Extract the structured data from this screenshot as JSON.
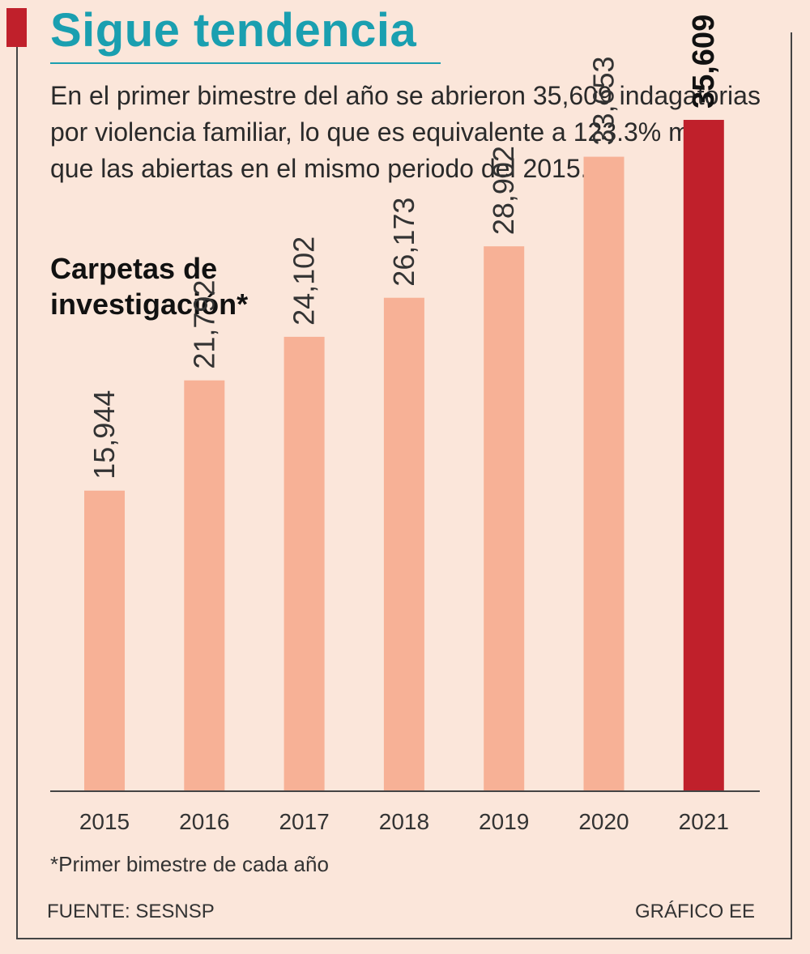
{
  "header": {
    "title": "Sigue tendencia",
    "intro": "En el primer bimestre del año se abrieron 35,609 indagatorias por violencia familiar, lo que es equivalente a 123.3% más que las abiertas en el mismo periodo del 2015."
  },
  "colors": {
    "title": "#1a9fb0",
    "accent": "#c0202b",
    "bar": "#f7b196",
    "bar_highlight": "#c0202b",
    "background": "#fbe6da"
  },
  "chart_data": {
    "type": "bar",
    "title": "Carpetas de investigación*",
    "categories": [
      "2015",
      "2016",
      "2017",
      "2018",
      "2019",
      "2020",
      "2021"
    ],
    "values": [
      15944,
      21792,
      24102,
      26173,
      28902,
      33653,
      35609
    ],
    "value_labels": [
      "15,944",
      "21,792",
      "24,102",
      "26,173",
      "28,902",
      "33,653",
      "35,609"
    ],
    "highlight_index": 6,
    "ylim": [
      0,
      40000
    ],
    "grid": false,
    "legend": "none"
  },
  "footer": {
    "note": "*Primer bimestre de cada año",
    "source": "FUENTE: SESNSP",
    "credit": "GRÁFICO EE"
  }
}
